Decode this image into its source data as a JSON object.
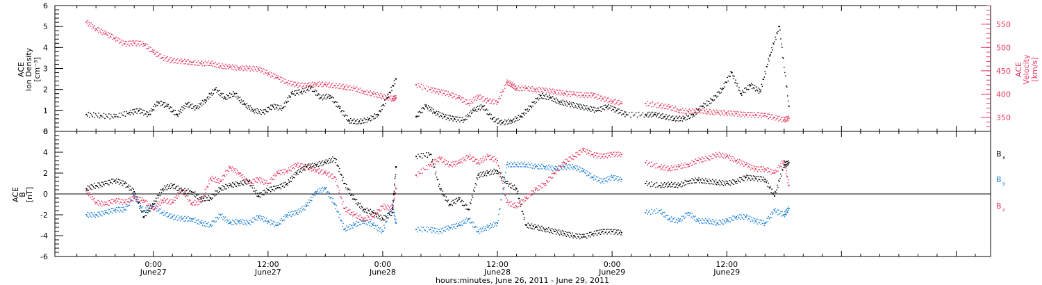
{
  "chart_data": [
    {
      "type": "scatter",
      "panel": "ace-density-velocity",
      "ylabel": [
        "ACE",
        "Ion Density",
        "[cm⁻³]"
      ],
      "ylim": [
        0,
        6
      ],
      "yticks": [
        0,
        1,
        2,
        3,
        4,
        5,
        6
      ],
      "y2label": [
        "ACE",
        "Velocity",
        "[km/s]"
      ],
      "y2lim": [
        320,
        590
      ],
      "y2ticks": [
        350,
        400,
        450,
        500,
        550
      ],
      "x_hours_start_note": "x values are hours since June 26, 2011 00:00",
      "series": [
        {
          "name": "Ion Density",
          "color": "#000000",
          "axis": "left",
          "x": [
            17,
            18.5,
            20,
            21.5,
            22.5,
            23.5,
            24.5,
            25.5,
            26.5,
            27.5,
            28.5,
            29.5,
            30.5,
            31.5,
            32.5,
            33.5,
            34.5,
            35.5,
            36.5,
            37.5,
            38.5,
            39.5,
            40.5,
            41.5,
            42.5,
            43.5,
            44.5,
            45.5,
            46.5,
            47.5,
            48.5,
            49.4,
            51.5,
            52.5,
            53.5,
            54.5,
            55.5,
            56.5,
            57.5,
            58.5,
            59.5,
            60.5,
            61.5,
            62.5,
            63.5,
            64.5,
            65.5,
            66.5,
            67.5,
            68.5,
            69.5,
            70.5,
            71.5,
            72.5,
            73.5,
            75.5,
            76.5,
            77.5,
            78.5,
            79.5,
            80.5,
            81.5,
            82.5,
            83.5,
            84.5,
            85.5,
            86.5,
            87.5,
            88.5,
            89.5,
            90.5
          ],
          "y": [
            0.8,
            0.75,
            0.7,
            0.9,
            1.0,
            0.8,
            1.4,
            1.2,
            0.8,
            1.3,
            1.1,
            1.5,
            2.0,
            1.6,
            1.8,
            1.3,
            1.0,
            0.9,
            1.2,
            1.1,
            1.8,
            1.9,
            2.1,
            1.6,
            1.7,
            1.1,
            0.5,
            0.45,
            0.55,
            0.8,
            1.6,
            2.5,
            0.7,
            1.2,
            0.9,
            0.7,
            0.6,
            0.55,
            1.0,
            1.2,
            0.6,
            0.4,
            0.5,
            0.7,
            1.2,
            1.7,
            1.6,
            1.4,
            1.3,
            1.2,
            1.1,
            1.0,
            1.2,
            1.0,
            0.8,
            0.8,
            0.8,
            0.7,
            0.6,
            0.6,
            0.8,
            1.2,
            1.5,
            2.0,
            2.8,
            1.8,
            2.2,
            1.9,
            3.6,
            5.0,
            1.2
          ]
        },
        {
          "name": "Velocity",
          "color": "#e8365e",
          "axis": "right",
          "x": [
            17,
            18,
            19,
            20,
            21,
            22,
            23,
            24,
            25,
            26,
            27,
            28,
            29,
            30,
            31,
            32,
            33,
            34,
            35,
            36,
            37,
            38,
            39,
            40,
            41,
            42,
            43,
            44,
            45,
            46,
            47,
            48,
            49,
            49.4,
            51.5,
            53,
            54,
            55,
            56,
            57,
            58,
            59,
            60,
            61,
            61.5,
            62,
            63,
            64,
            65,
            66,
            67,
            68,
            69,
            70,
            71,
            72,
            73,
            75.5,
            77,
            78,
            79,
            80,
            81,
            82,
            83,
            84,
            85,
            86,
            87,
            88,
            89,
            90,
            90.5
          ],
          "y": [
            555,
            540,
            530,
            520,
            508,
            510,
            508,
            490,
            478,
            472,
            470,
            468,
            465,
            466,
            460,
            458,
            456,
            455,
            454,
            445,
            435,
            425,
            420,
            418,
            422,
            420,
            418,
            415,
            412,
            405,
            400,
            395,
            390,
            392,
            420,
            410,
            405,
            400,
            392,
            380,
            395,
            385,
            383,
            425,
            420,
            412,
            412,
            410,
            408,
            405,
            402,
            400,
            398,
            398,
            390,
            385,
            380,
            380,
            375,
            372,
            365,
            362,
            365,
            362,
            360,
            360,
            358,
            356,
            356,
            354,
            350,
            345,
            348
          ]
        }
      ]
    },
    {
      "type": "scatter",
      "panel": "ace-b-field",
      "ylabel": [
        "ACE",
        "B",
        "[nT]"
      ],
      "ylim": [
        -6,
        6
      ],
      "yticks": [
        -6,
        -4,
        -2,
        0,
        2,
        4,
        6
      ],
      "series": [
        {
          "name": "Bx",
          "label_main": "B",
          "label_sub": "x",
          "color": "#000000",
          "x": [
            17,
            18,
            19,
            20,
            21,
            22,
            23,
            24,
            25,
            26,
            27,
            28,
            29,
            30,
            31,
            32,
            33,
            34,
            35,
            36,
            37,
            38,
            39,
            40,
            41,
            42,
            43,
            44,
            45,
            46,
            47,
            48,
            49,
            49.4,
            51.5,
            53,
            54,
            55,
            56,
            57,
            58,
            59,
            60,
            61,
            62,
            63,
            64,
            65,
            66,
            67,
            68,
            69,
            70,
            71,
            72,
            73,
            75.5,
            77,
            78,
            79,
            80,
            81,
            82,
            83,
            84,
            85,
            86,
            87,
            88,
            89,
            90,
            90.5
          ],
          "y": [
            0.5,
            0.8,
            1.0,
            1.3,
            1.0,
            0.2,
            -2.2,
            -1.0,
            0.5,
            0.8,
            0.3,
            0.2,
            -0.5,
            -0.4,
            0.5,
            0.8,
            1.0,
            1.2,
            -0.2,
            0.4,
            0.6,
            1.0,
            2.0,
            2.6,
            2.8,
            3.0,
            3.4,
            1.0,
            -0.5,
            -1.5,
            -1.8,
            -2.4,
            -1.8,
            2.6,
            3.6,
            3.8,
            0.5,
            -1.0,
            -0.5,
            -1.5,
            1.8,
            2.0,
            2.2,
            1.0,
            0.5,
            -3.0,
            -3.2,
            -3.4,
            -3.6,
            -3.8,
            -4.0,
            -4.1,
            -3.8,
            -3.6,
            -3.6,
            -3.7,
            1.0,
            0.8,
            0.9,
            0.8,
            1.2,
            1.3,
            1.2,
            1.1,
            1.0,
            1.2,
            1.6,
            1.5,
            1.4,
            -0.2,
            2.8,
            3.0
          ]
        },
        {
          "name": "By",
          "label_main": "B",
          "label_sub": "y",
          "color": "#1a7fd6",
          "x": [
            17,
            18,
            19,
            20,
            21,
            22,
            23,
            24,
            25,
            26,
            27,
            28,
            29,
            30,
            31,
            32,
            33,
            34,
            35,
            36,
            37,
            38,
            39,
            40,
            41,
            42,
            43,
            44,
            45,
            46,
            47,
            48,
            49,
            49.4,
            51.5,
            53,
            54,
            55,
            56,
            57,
            58,
            59,
            60,
            61,
            62,
            63,
            64,
            65,
            66,
            67,
            68,
            69,
            70,
            71,
            72,
            73,
            75.5,
            77,
            78,
            79,
            80,
            81,
            82,
            83,
            84,
            85,
            86,
            87,
            88,
            89,
            90,
            90.5
          ],
          "y": [
            -2.0,
            -2.0,
            -1.8,
            -1.5,
            -1.5,
            -0.2,
            -1.6,
            -1.2,
            -1.8,
            -2.2,
            -2.4,
            -2.4,
            -2.8,
            -3.0,
            -2.0,
            -2.8,
            -2.6,
            -2.8,
            -2.2,
            -2.6,
            -3.0,
            -2.0,
            -1.8,
            -1.2,
            0.2,
            0.5,
            -1.0,
            -3.4,
            -3.0,
            -2.6,
            -3.0,
            -3.6,
            -1.0,
            -2.8,
            -3.4,
            -3.4,
            -3.6,
            -3.2,
            -3.0,
            -2.4,
            -3.6,
            -3.2,
            -2.8,
            2.8,
            2.8,
            2.8,
            2.6,
            2.6,
            2.4,
            2.6,
            2.6,
            2.2,
            1.6,
            1.2,
            1.6,
            1.4,
            -1.8,
            -1.6,
            -2.4,
            -2.6,
            -1.8,
            -2.6,
            -2.6,
            -2.8,
            -2.6,
            -2.2,
            -2.2,
            -2.6,
            -2.8,
            -1.6,
            -2.0,
            -1.4
          ]
        },
        {
          "name": "Bz",
          "label_main": "B",
          "label_sub": "z",
          "color": "#e8365e",
          "x": [
            17,
            18,
            19,
            20,
            21,
            22,
            23,
            24,
            25,
            26,
            27,
            28,
            29,
            30,
            31,
            32,
            33,
            34,
            35,
            36,
            37,
            38,
            39,
            40,
            41,
            42,
            43,
            44,
            45,
            46,
            47,
            48,
            49,
            49.4,
            51.5,
            53,
            54,
            55,
            56,
            57,
            58,
            59,
            60,
            61,
            62,
            63,
            64,
            65,
            66,
            67,
            68,
            69,
            70,
            71,
            72,
            73,
            75.5,
            77,
            78,
            79,
            80,
            81,
            82,
            83,
            84,
            85,
            86,
            87,
            88,
            89,
            90,
            90.5
          ],
          "y": [
            0.3,
            -0.8,
            -1.0,
            -0.6,
            -0.8,
            -0.4,
            -0.6,
            -1.5,
            -0.6,
            -0.8,
            0.4,
            -0.9,
            -0.8,
            1.5,
            1.2,
            2.5,
            2.0,
            1.0,
            1.4,
            1.0,
            2.0,
            2.2,
            2.8,
            2.6,
            2.3,
            2.0,
            1.6,
            -1.4,
            -2.0,
            -2.4,
            -2.2,
            -1.2,
            -1.4,
            0.5,
            1.8,
            2.8,
            3.4,
            2.8,
            3.0,
            3.6,
            3.0,
            3.6,
            3.2,
            -0.8,
            -1.2,
            -0.4,
            0.4,
            1.0,
            2.0,
            3.0,
            3.6,
            4.2,
            3.8,
            3.6,
            3.8,
            3.8,
            3.0,
            2.6,
            2.4,
            2.6,
            2.8,
            3.2,
            3.4,
            3.8,
            3.6,
            3.2,
            2.8,
            2.4,
            2.4,
            2.0,
            3.2,
            0.8
          ]
        }
      ]
    }
  ],
  "x_axis": {
    "xlabel": "hours:minutes, June 26, 2011 - June 29, 2011",
    "xlim_hours": [
      13.7,
      111.6
    ],
    "tick_labels": [
      {
        "time": "0:00",
        "date": "June27",
        "hours": 24
      },
      {
        "time": "12:00",
        "date": "June27",
        "hours": 36
      },
      {
        "time": "0:00",
        "date": "June28",
        "hours": 48
      },
      {
        "time": "12:00",
        "date": "June28",
        "hours": 60
      },
      {
        "time": "0:00",
        "date": "June29",
        "hours": 72
      },
      {
        "time": "12:00",
        "date": "June29",
        "hours": 84
      }
    ]
  }
}
